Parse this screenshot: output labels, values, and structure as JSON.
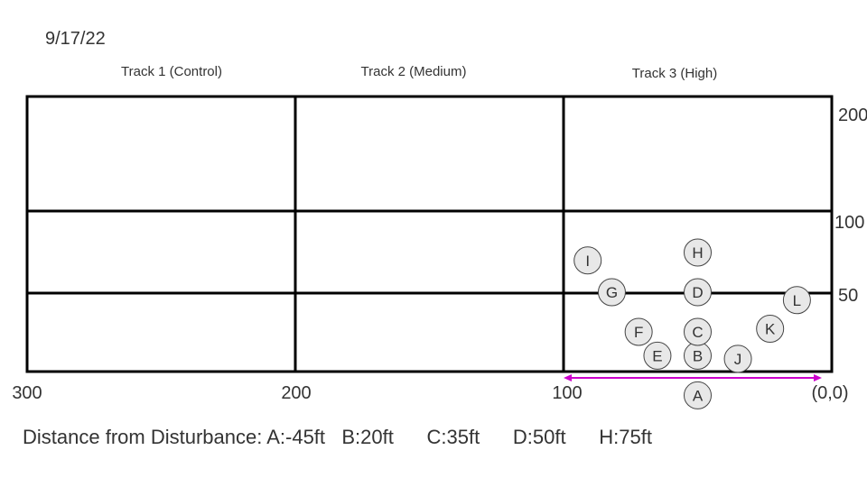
{
  "date": "9/17/22",
  "tracks": [
    "Track 1 (Control)",
    "Track 2 (Medium)",
    "Track 3 (High)"
  ],
  "x_ticks": [
    "300",
    "200",
    "100",
    "(0,0)"
  ],
  "y_ticks": [
    "200",
    "100",
    "50"
  ],
  "markers": [
    {
      "id": "A",
      "label": "A",
      "x": 50,
      "y": -15
    },
    {
      "id": "B",
      "label": "B",
      "x": 50,
      "y": 10
    },
    {
      "id": "C",
      "label": "C",
      "x": 50,
      "y": 25
    },
    {
      "id": "D",
      "label": "D",
      "x": 50,
      "y": 50
    },
    {
      "id": "E",
      "label": "E",
      "x": 65,
      "y": 10
    },
    {
      "id": "F",
      "label": "F",
      "x": 72,
      "y": 25
    },
    {
      "id": "G",
      "label": "G",
      "x": 82,
      "y": 50
    },
    {
      "id": "H",
      "label": "H",
      "x": 50,
      "y": 75
    },
    {
      "id": "I",
      "label": "I",
      "x": 91,
      "y": 70
    },
    {
      "id": "J",
      "label": "J",
      "x": 35,
      "y": 8
    },
    {
      "id": "K",
      "label": "K",
      "x": 23,
      "y": 27
    },
    {
      "id": "L",
      "label": "L",
      "x": 13,
      "y": 45
    }
  ],
  "arrow_color": "#cc00cc",
  "caption": "Distance from Disturbance: A:-45ft   B:20ft      C:35ft      D:50ft      H:75ft"
}
